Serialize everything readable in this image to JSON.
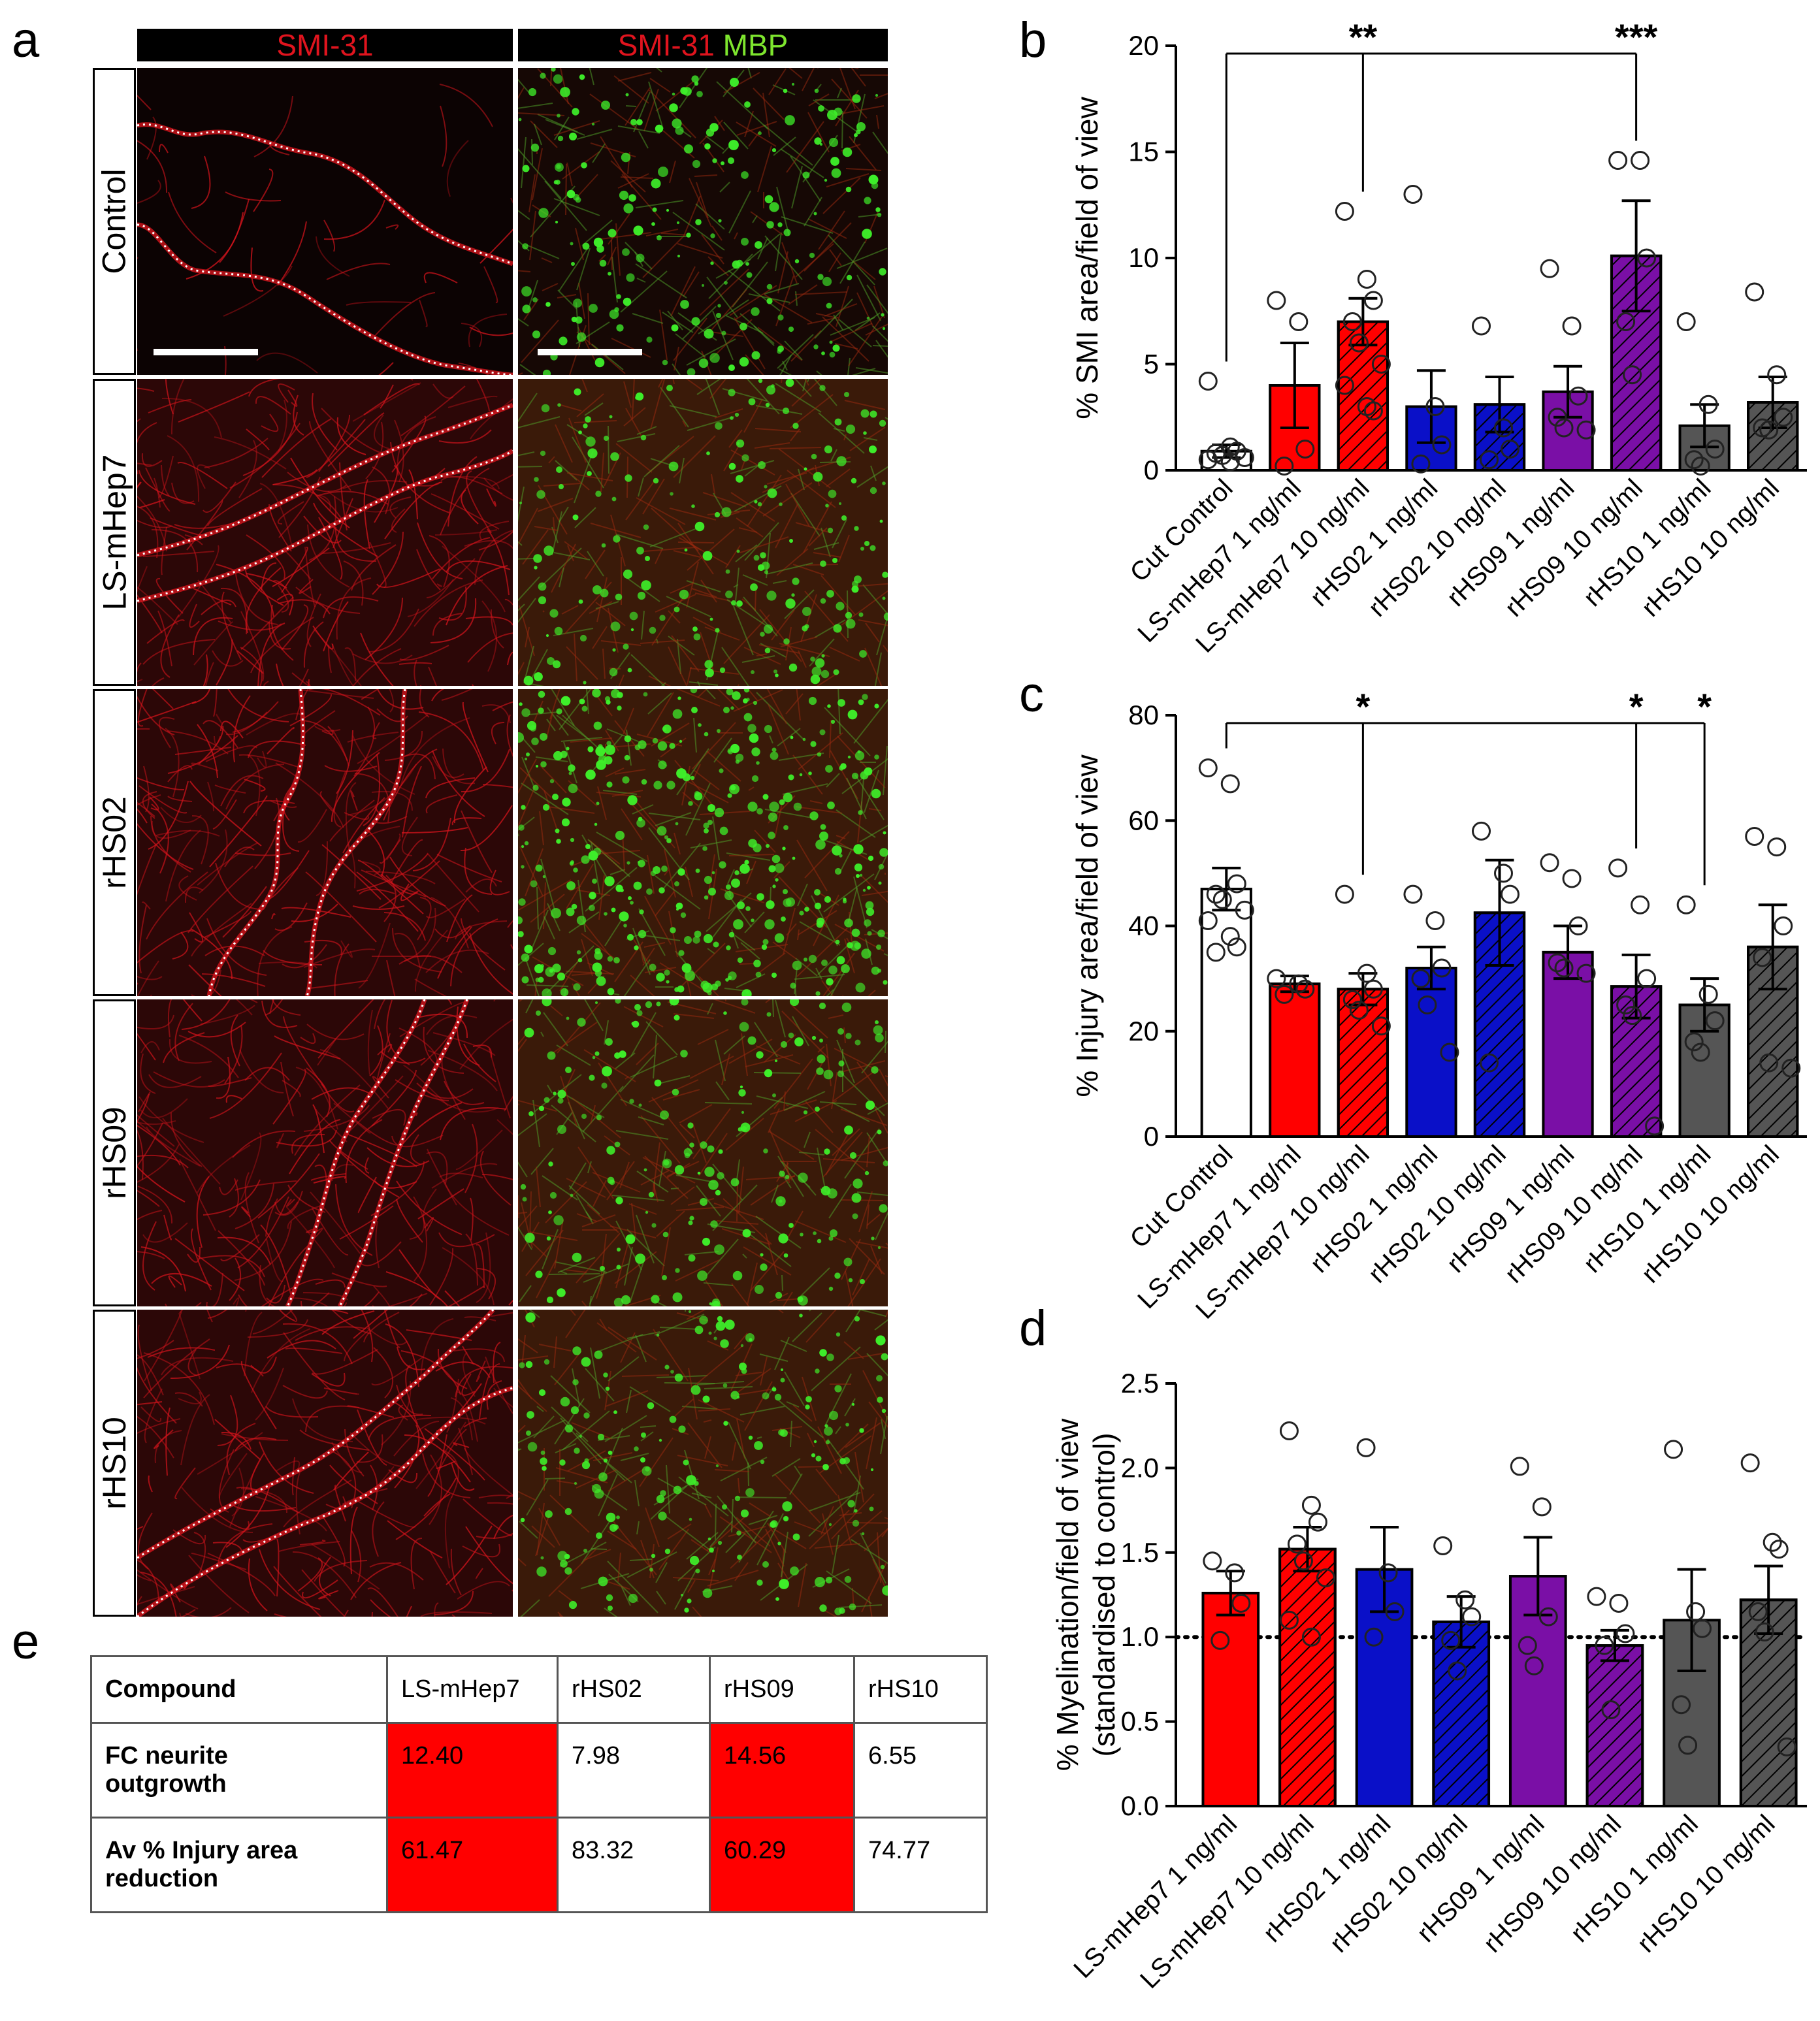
{
  "panel_letters": {
    "a": "a",
    "b": "b",
    "c": "c",
    "d": "d",
    "e": "e"
  },
  "panel_a": {
    "col_headers": {
      "left": {
        "red": "SMI-31",
        "green": ""
      },
      "right": {
        "red": "SMI-31",
        "green": "MBP"
      }
    },
    "rows": [
      "Control",
      "LS-mHep7",
      "rHS02",
      "rHS09",
      "rHS10"
    ],
    "colors": {
      "axon_red": "#d4141c",
      "mbp_green": "#3ef02a",
      "injury_outline": "#ffffff"
    }
  },
  "colors": {
    "red": "#ff0000",
    "blue": "#0a10c8",
    "purple": "#7a0fa6",
    "grey": "#555555",
    "white": "#ffffff"
  },
  "chart_data": [
    {
      "id": "b",
      "type": "bar",
      "ylabel": "% SMI area/field of view",
      "ylim": [
        0,
        20
      ],
      "yticks": [
        0,
        5,
        10,
        15,
        20
      ],
      "categories": [
        "Cut Control",
        "LS-mHep7 1 ng/ml",
        "LS-mHep7 10 ng/ml",
        "rHS02 1 ng/ml",
        "rHS02 10 ng/ml",
        "rHS09 1 ng/ml",
        "rHS09 10 ng/ml",
        "rHS10 1 ng/ml",
        "rHS10 10 ng/ml"
      ],
      "bar_colors": [
        "white",
        "red",
        "red",
        "blue",
        "blue",
        "purple",
        "purple",
        "grey",
        "grey"
      ],
      "hatched": [
        false,
        false,
        true,
        false,
        true,
        false,
        true,
        false,
        true
      ],
      "values": [
        0.9,
        4.0,
        7.0,
        3.0,
        3.1,
        3.7,
        10.1,
        2.1,
        3.2
      ],
      "sem": [
        0.3,
        2.0,
        1.1,
        1.7,
        1.3,
        1.2,
        2.6,
        1.0,
        1.2
      ],
      "points": [
        [
          4.2,
          1.1,
          0.9,
          0.8,
          0.7,
          0.6,
          0.5,
          0.4
        ],
        [
          8.0,
          7.0,
          1.0,
          0.2
        ],
        [
          12.2,
          9.0,
          8.0,
          7.0,
          6.0,
          5.0,
          4.0,
          3.0,
          2.8
        ],
        [
          13.0,
          3.0,
          1.2,
          0.3
        ],
        [
          6.8,
          2.0,
          1.0,
          0.5
        ],
        [
          9.5,
          6.8,
          3.5,
          2.5,
          2.0,
          1.9
        ],
        [
          14.6,
          14.6,
          10.0,
          7.0,
          4.5
        ],
        [
          7.0,
          3.1,
          1.0,
          0.5,
          0.2
        ],
        [
          8.4,
          4.5,
          2.5,
          2.0,
          1.9
        ]
      ],
      "significance": [
        {
          "from": 0,
          "to": 2,
          "label": "**"
        },
        {
          "from": 0,
          "to": 6,
          "label": "***"
        }
      ]
    },
    {
      "id": "c",
      "type": "bar",
      "ylabel": "% Injury area/field of view",
      "ylim": [
        0,
        80
      ],
      "yticks": [
        0,
        20,
        40,
        60,
        80
      ],
      "categories": [
        "Cut Control",
        "LS-mHep7 1 ng/ml",
        "LS-mHep7 10 ng/ml",
        "rHS02 1 ng/ml",
        "rHS02 10 ng/ml",
        "rHS09 1 ng/ml",
        "rHS09 10 ng/ml",
        "rHS10 1 ng/ml",
        "rHS10 10 ng/ml"
      ],
      "bar_colors": [
        "white",
        "red",
        "red",
        "blue",
        "blue",
        "purple",
        "purple",
        "grey",
        "grey"
      ],
      "hatched": [
        false,
        false,
        true,
        false,
        true,
        false,
        true,
        false,
        true
      ],
      "values": [
        47,
        29,
        28,
        32,
        42.5,
        35,
        28.5,
        25,
        36
      ],
      "sem": [
        4,
        1.5,
        3,
        4,
        10,
        5,
        6,
        5,
        8
      ],
      "points": [
        [
          70,
          67,
          48,
          46,
          45,
          43,
          41,
          38,
          36,
          35
        ],
        [
          30,
          29,
          28,
          27
        ],
        [
          46,
          31,
          28,
          26,
          24,
          21
        ],
        [
          46,
          41,
          32,
          30,
          25,
          16
        ],
        [
          58,
          50,
          46,
          14
        ],
        [
          52,
          49,
          40,
          33,
          32,
          31
        ],
        [
          51,
          44,
          30,
          25,
          23,
          2
        ],
        [
          44,
          27,
          22,
          18,
          16
        ],
        [
          57,
          55,
          40,
          34,
          14,
          13
        ]
      ],
      "significance": [
        {
          "from": 0,
          "to": 2,
          "label": "*"
        },
        {
          "from": 0,
          "to": 6,
          "label": "*"
        },
        {
          "from": 0,
          "to": 7,
          "label": "*"
        }
      ]
    },
    {
      "id": "d",
      "type": "bar",
      "ylabel": "% Myelination/field of view (standardised to control)",
      "ylabel_lines": [
        "% Myelination/field of view",
        "(standardised to control)"
      ],
      "ylim": [
        0,
        2.5
      ],
      "yticks": [
        0.0,
        0.5,
        1.0,
        1.5,
        2.0,
        2.5
      ],
      "reference_line": 1.0,
      "categories": [
        "LS-mHep7 1 ng/ml",
        "LS-mHep7 10 ng/ml",
        "rHS02 1 ng/ml",
        "rHS02 10 ng/ml",
        "rHS09 1 ng/ml",
        "rHS09 10 ng/ml",
        "rHS10 1 ng/ml",
        "rHS10 10 ng/ml"
      ],
      "bar_colors": [
        "red",
        "red",
        "blue",
        "blue",
        "purple",
        "purple",
        "grey",
        "grey"
      ],
      "hatched": [
        false,
        true,
        false,
        true,
        false,
        true,
        false,
        true
      ],
      "values": [
        1.26,
        1.52,
        1.4,
        1.09,
        1.36,
        0.95,
        1.1,
        1.22
      ],
      "sem": [
        0.13,
        0.13,
        0.25,
        0.15,
        0.23,
        0.09,
        0.3,
        0.2
      ],
      "points": [
        [
          1.45,
          1.38,
          1.2,
          0.98
        ],
        [
          2.22,
          1.78,
          1.68,
          1.55,
          1.45,
          1.35,
          1.1,
          1.0
        ],
        [
          2.12,
          1.38,
          1.15,
          1.0
        ],
        [
          1.54,
          1.22,
          1.12,
          0.98,
          0.8
        ],
        [
          2.01,
          1.77,
          1.12,
          0.95,
          0.83
        ],
        [
          1.24,
          1.2,
          1.02,
          0.95,
          0.57
        ],
        [
          2.11,
          1.15,
          1.05,
          0.6,
          0.36
        ],
        [
          2.03,
          1.56,
          1.52,
          1.15,
          1.03,
          0.35
        ]
      ],
      "significance": []
    }
  ],
  "table_e": {
    "header": [
      "Compound",
      "LS-mHep7",
      "rHS02",
      "rHS09",
      "rHS10"
    ],
    "rows": [
      {
        "label_lines": [
          "FC neurite",
          "outgrowth"
        ],
        "values": [
          "12.40",
          "7.98",
          "14.56",
          "6.55"
        ],
        "highlight": [
          true,
          false,
          true,
          false
        ]
      },
      {
        "label_lines": [
          "Av % Injury area",
          "reduction"
        ],
        "values": [
          "61.47",
          "83.32",
          "60.29",
          "74.77"
        ],
        "highlight": [
          true,
          false,
          true,
          false
        ]
      }
    ]
  }
}
